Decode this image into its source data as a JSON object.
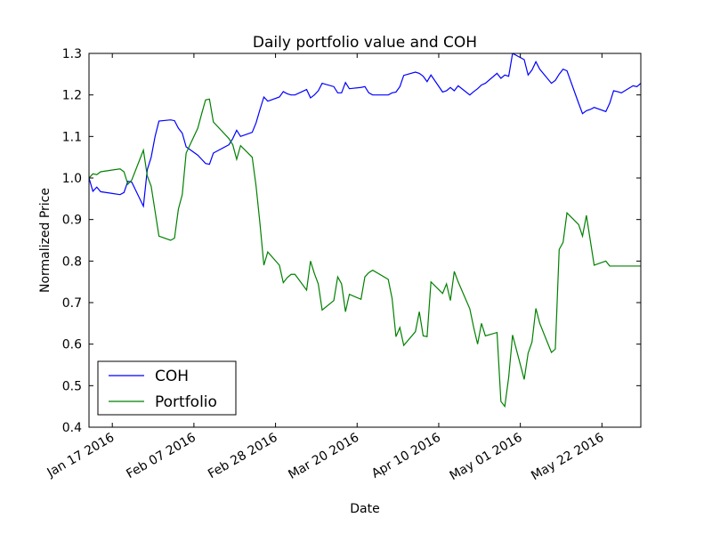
{
  "chart_data": {
    "type": "line",
    "title": "Daily portfolio value and COH",
    "xlabel": "Date",
    "ylabel": "Normalized Price",
    "ylim": [
      0.4,
      1.3
    ],
    "xlim": [
      "2016-01-11",
      "2016-06-01"
    ],
    "yticks": [
      "0.4",
      "0.5",
      "0.6",
      "0.7",
      "0.8",
      "0.9",
      "1.0",
      "1.1",
      "1.2",
      "1.3"
    ],
    "xticks": [
      {
        "date": "2016-01-17",
        "label": "Jan 17 2016"
      },
      {
        "date": "2016-02-07",
        "label": "Feb 07 2016"
      },
      {
        "date": "2016-02-28",
        "label": "Feb 28 2016"
      },
      {
        "date": "2016-03-20",
        "label": "Mar 20 2016"
      },
      {
        "date": "2016-04-10",
        "label": "Apr 10 2016"
      },
      {
        "date": "2016-05-01",
        "label": "May 01 2016"
      },
      {
        "date": "2016-05-22",
        "label": "May 22 2016"
      }
    ],
    "grid": false,
    "legend": "lower-left",
    "series": [
      {
        "name": "COH",
        "color": "#0000ff",
        "points": [
          [
            "2016-01-11",
            1.0
          ],
          [
            "2016-01-12",
            0.968
          ],
          [
            "2016-01-13",
            0.978
          ],
          [
            "2016-01-14",
            0.967
          ],
          [
            "2016-01-19",
            0.96
          ],
          [
            "2016-01-20",
            0.965
          ],
          [
            "2016-01-21",
            0.992
          ],
          [
            "2016-01-22",
            0.99
          ],
          [
            "2016-01-25",
            0.932
          ],
          [
            "2016-01-26",
            1.02
          ],
          [
            "2016-01-27",
            1.05
          ],
          [
            "2016-01-28",
            1.1
          ],
          [
            "2016-01-29",
            1.137
          ],
          [
            "2016-02-01",
            1.14
          ],
          [
            "2016-02-02",
            1.138
          ],
          [
            "2016-02-03",
            1.12
          ],
          [
            "2016-02-04",
            1.108
          ],
          [
            "2016-02-05",
            1.075
          ],
          [
            "2016-02-08",
            1.055
          ],
          [
            "2016-02-09",
            1.045
          ],
          [
            "2016-02-10",
            1.035
          ],
          [
            "2016-02-11",
            1.033
          ],
          [
            "2016-02-12",
            1.06
          ],
          [
            "2016-02-16",
            1.08
          ],
          [
            "2016-02-17",
            1.095
          ],
          [
            "2016-02-18",
            1.115
          ],
          [
            "2016-02-19",
            1.1
          ],
          [
            "2016-02-22",
            1.11
          ],
          [
            "2016-02-23",
            1.133
          ],
          [
            "2016-02-24",
            1.165
          ],
          [
            "2016-02-25",
            1.195
          ],
          [
            "2016-02-26",
            1.185
          ],
          [
            "2016-02-29",
            1.195
          ],
          [
            "2016-03-01",
            1.208
          ],
          [
            "2016-03-02",
            1.203
          ],
          [
            "2016-03-03",
            1.2
          ],
          [
            "2016-03-04",
            1.2
          ],
          [
            "2016-03-07",
            1.213
          ],
          [
            "2016-03-08",
            1.193
          ],
          [
            "2016-03-09",
            1.2
          ],
          [
            "2016-03-10",
            1.21
          ],
          [
            "2016-03-11",
            1.228
          ],
          [
            "2016-03-14",
            1.22
          ],
          [
            "2016-03-15",
            1.205
          ],
          [
            "2016-03-16",
            1.205
          ],
          [
            "2016-03-17",
            1.23
          ],
          [
            "2016-03-18",
            1.215
          ],
          [
            "2016-03-21",
            1.218
          ],
          [
            "2016-03-22",
            1.22
          ],
          [
            "2016-03-23",
            1.205
          ],
          [
            "2016-03-24",
            1.2
          ],
          [
            "2016-03-28",
            1.2
          ],
          [
            "2016-03-29",
            1.205
          ],
          [
            "2016-03-30",
            1.207
          ],
          [
            "2016-03-31",
            1.22
          ],
          [
            "2016-04-01",
            1.247
          ],
          [
            "2016-04-04",
            1.255
          ],
          [
            "2016-04-05",
            1.252
          ],
          [
            "2016-04-06",
            1.245
          ],
          [
            "2016-04-07",
            1.232
          ],
          [
            "2016-04-08",
            1.248
          ],
          [
            "2016-04-11",
            1.207
          ],
          [
            "2016-04-12",
            1.21
          ],
          [
            "2016-04-13",
            1.218
          ],
          [
            "2016-04-14",
            1.21
          ],
          [
            "2016-04-15",
            1.222
          ],
          [
            "2016-04-18",
            1.2
          ],
          [
            "2016-04-19",
            1.208
          ],
          [
            "2016-04-20",
            1.215
          ],
          [
            "2016-04-21",
            1.224
          ],
          [
            "2016-04-22",
            1.228
          ],
          [
            "2016-04-25",
            1.252
          ],
          [
            "2016-04-26",
            1.24
          ],
          [
            "2016-04-27",
            1.248
          ],
          [
            "2016-04-28",
            1.245
          ],
          [
            "2016-04-29",
            1.3
          ],
          [
            "2016-05-02",
            1.285
          ],
          [
            "2016-05-03",
            1.248
          ],
          [
            "2016-05-04",
            1.26
          ],
          [
            "2016-05-05",
            1.28
          ],
          [
            "2016-05-06",
            1.262
          ],
          [
            "2016-05-09",
            1.228
          ],
          [
            "2016-05-10",
            1.235
          ],
          [
            "2016-05-11",
            1.25
          ],
          [
            "2016-05-12",
            1.262
          ],
          [
            "2016-05-13",
            1.258
          ],
          [
            "2016-05-16",
            1.18
          ],
          [
            "2016-05-17",
            1.155
          ],
          [
            "2016-05-18",
            1.162
          ],
          [
            "2016-05-19",
            1.165
          ],
          [
            "2016-05-20",
            1.17
          ],
          [
            "2016-05-23",
            1.16
          ],
          [
            "2016-05-24",
            1.18
          ],
          [
            "2016-05-25",
            1.21
          ],
          [
            "2016-05-26",
            1.208
          ],
          [
            "2016-05-27",
            1.205
          ],
          [
            "2016-05-30",
            1.222
          ],
          [
            "2016-05-31",
            1.22
          ],
          [
            "2016-06-01",
            1.228
          ]
        ]
      },
      {
        "name": "Portfolio",
        "color": "#008000",
        "points": [
          [
            "2016-01-11",
            1.0
          ],
          [
            "2016-01-12",
            1.01
          ],
          [
            "2016-01-13",
            1.008
          ],
          [
            "2016-01-14",
            1.015
          ],
          [
            "2016-01-19",
            1.022
          ],
          [
            "2016-01-20",
            1.015
          ],
          [
            "2016-01-21",
            0.985
          ],
          [
            "2016-01-22",
            0.995
          ],
          [
            "2016-01-25",
            1.067
          ],
          [
            "2016-01-26",
            1.005
          ],
          [
            "2016-01-27",
            0.98
          ],
          [
            "2016-01-28",
            0.92
          ],
          [
            "2016-01-29",
            0.86
          ],
          [
            "2016-02-01",
            0.85
          ],
          [
            "2016-02-02",
            0.855
          ],
          [
            "2016-02-03",
            0.925
          ],
          [
            "2016-02-04",
            0.96
          ],
          [
            "2016-02-05",
            1.06
          ],
          [
            "2016-02-08",
            1.12
          ],
          [
            "2016-02-09",
            1.155
          ],
          [
            "2016-02-10",
            1.188
          ],
          [
            "2016-02-11",
            1.19
          ],
          [
            "2016-02-12",
            1.135
          ],
          [
            "2016-02-16",
            1.095
          ],
          [
            "2016-02-17",
            1.08
          ],
          [
            "2016-02-18",
            1.045
          ],
          [
            "2016-02-19",
            1.078
          ],
          [
            "2016-02-22",
            1.05
          ],
          [
            "2016-02-23",
            0.98
          ],
          [
            "2016-02-24",
            0.89
          ],
          [
            "2016-02-25",
            0.79
          ],
          [
            "2016-02-26",
            0.822
          ],
          [
            "2016-02-29",
            0.79
          ],
          [
            "2016-03-01",
            0.748
          ],
          [
            "2016-03-02",
            0.76
          ],
          [
            "2016-03-03",
            0.768
          ],
          [
            "2016-03-04",
            0.768
          ],
          [
            "2016-03-07",
            0.73
          ],
          [
            "2016-03-08",
            0.8
          ],
          [
            "2016-03-09",
            0.77
          ],
          [
            "2016-03-10",
            0.745
          ],
          [
            "2016-03-11",
            0.682
          ],
          [
            "2016-03-14",
            0.705
          ],
          [
            "2016-03-15",
            0.762
          ],
          [
            "2016-03-16",
            0.745
          ],
          [
            "2016-03-17",
            0.678
          ],
          [
            "2016-03-18",
            0.72
          ],
          [
            "2016-03-21",
            0.708
          ],
          [
            "2016-03-22",
            0.762
          ],
          [
            "2016-03-23",
            0.772
          ],
          [
            "2016-03-24",
            0.778
          ],
          [
            "2016-03-28",
            0.756
          ],
          [
            "2016-03-29",
            0.71
          ],
          [
            "2016-03-30",
            0.618
          ],
          [
            "2016-03-31",
            0.64
          ],
          [
            "2016-04-01",
            0.597
          ],
          [
            "2016-04-04",
            0.63
          ],
          [
            "2016-04-05",
            0.678
          ],
          [
            "2016-04-06",
            0.62
          ],
          [
            "2016-04-07",
            0.618
          ],
          [
            "2016-04-08",
            0.75
          ],
          [
            "2016-04-11",
            0.722
          ],
          [
            "2016-04-12",
            0.745
          ],
          [
            "2016-04-13",
            0.705
          ],
          [
            "2016-04-14",
            0.775
          ],
          [
            "2016-04-15",
            0.75
          ],
          [
            "2016-04-18",
            0.685
          ],
          [
            "2016-04-19",
            0.64
          ],
          [
            "2016-04-20",
            0.6
          ],
          [
            "2016-04-21",
            0.65
          ],
          [
            "2016-04-22",
            0.62
          ],
          [
            "2016-04-25",
            0.628
          ],
          [
            "2016-04-26",
            0.462
          ],
          [
            "2016-04-27",
            0.45
          ],
          [
            "2016-04-28",
            0.52
          ],
          [
            "2016-04-29",
            0.622
          ],
          [
            "2016-05-02",
            0.515
          ],
          [
            "2016-05-03",
            0.578
          ],
          [
            "2016-05-04",
            0.605
          ],
          [
            "2016-05-05",
            0.686
          ],
          [
            "2016-05-06",
            0.65
          ],
          [
            "2016-05-09",
            0.58
          ],
          [
            "2016-05-10",
            0.588
          ],
          [
            "2016-05-11",
            0.828
          ],
          [
            "2016-05-12",
            0.845
          ],
          [
            "2016-05-13",
            0.916
          ],
          [
            "2016-05-16",
            0.888
          ],
          [
            "2016-05-17",
            0.86
          ],
          [
            "2016-05-18",
            0.91
          ],
          [
            "2016-05-19",
            0.85
          ],
          [
            "2016-05-20",
            0.79
          ],
          [
            "2016-05-23",
            0.8
          ],
          [
            "2016-05-24",
            0.788
          ],
          [
            "2016-06-01",
            0.788
          ]
        ]
      }
    ]
  }
}
